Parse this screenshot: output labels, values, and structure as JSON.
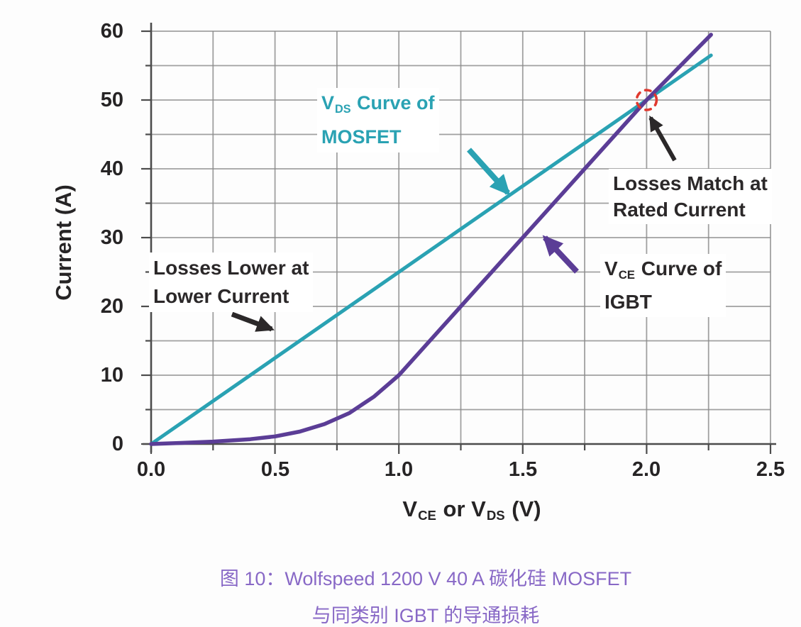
{
  "figure_colors": {
    "mosfet_teal": "#2aa2b3",
    "igbt_purple": "#5b3d96",
    "annotation_black": "#2b2829",
    "grid_gray": "#8a8a8a",
    "axis_gray": "#4c4c4c",
    "marker_red": "#e0392f",
    "caption_purple": "#8868c6"
  },
  "chart_data": {
    "type": "line",
    "title": "",
    "xlabel": "V_CE or V_DS (V)",
    "ylabel": "Current (A)",
    "xlim": [
      0,
      2.5
    ],
    "ylim": [
      0,
      60
    ],
    "x_ticks": [
      0,
      0.5,
      1.0,
      1.5,
      2.0,
      2.5
    ],
    "x_tick_labels": [
      "0.0",
      "0.5",
      "1.0",
      "1.5",
      "2.0",
      "2.5"
    ],
    "y_ticks": [
      0,
      10,
      20,
      30,
      40,
      50,
      60
    ],
    "y_tick_labels": [
      "0",
      "10",
      "20",
      "30",
      "40",
      "50",
      "60"
    ],
    "grid": "on",
    "x_minor_step": 0.25,
    "y_minor_step": 5,
    "legend_position": "none (inline annotated labels)",
    "series": [
      {
        "name": "V_DS Curve of MOSFET",
        "color": "#2aa2b3",
        "width": 5,
        "points": [
          [
            0,
            0
          ],
          [
            2.26,
            56.5
          ]
        ]
      },
      {
        "name": "V_CE Curve of IGBT",
        "color": "#5b3d96",
        "width": 5.5,
        "points": [
          [
            0,
            0
          ],
          [
            0.12,
            0.15
          ],
          [
            0.25,
            0.35
          ],
          [
            0.4,
            0.7
          ],
          [
            0.5,
            1.1
          ],
          [
            0.6,
            1.8
          ],
          [
            0.7,
            2.9
          ],
          [
            0.8,
            4.5
          ],
          [
            0.9,
            6.9
          ],
          [
            1.0,
            10
          ],
          [
            1.1,
            14
          ],
          [
            1.25,
            20
          ],
          [
            1.5,
            30
          ],
          [
            1.75,
            40
          ],
          [
            2.0,
            50
          ],
          [
            2.26,
            59.5
          ]
        ]
      }
    ],
    "intersection_marker": {
      "x": 2.0,
      "y": 50,
      "style": "red dashed circle",
      "color": "#e0392f",
      "radius_px": 14
    }
  },
  "axes": {
    "y": {
      "title": "Current (A)"
    },
    "x": {
      "title_parts": {
        "p1": "V",
        "sub1": "CE",
        "p2": " or V",
        "sub2": "DS",
        "p3": " (V)"
      }
    }
  },
  "annotations": {
    "mosfet": {
      "v": "V",
      "sub": "DS",
      "rest": " Curve of",
      "line2": "MOSFET"
    },
    "igbt": {
      "v": "V",
      "sub": "CE",
      "rest": " Curve of",
      "line2": "IGBT"
    },
    "losses_lower": {
      "line1": "Losses Lower at",
      "line2": "Lower Current"
    },
    "losses_match": {
      "line1": "Losses Match at",
      "line2": "Rated Current"
    }
  },
  "caption": {
    "line1": "图 10：Wolfspeed 1200 V 40 A 碳化硅 MOSFET",
    "line2": "与同类别 IGBT 的导通损耗"
  }
}
